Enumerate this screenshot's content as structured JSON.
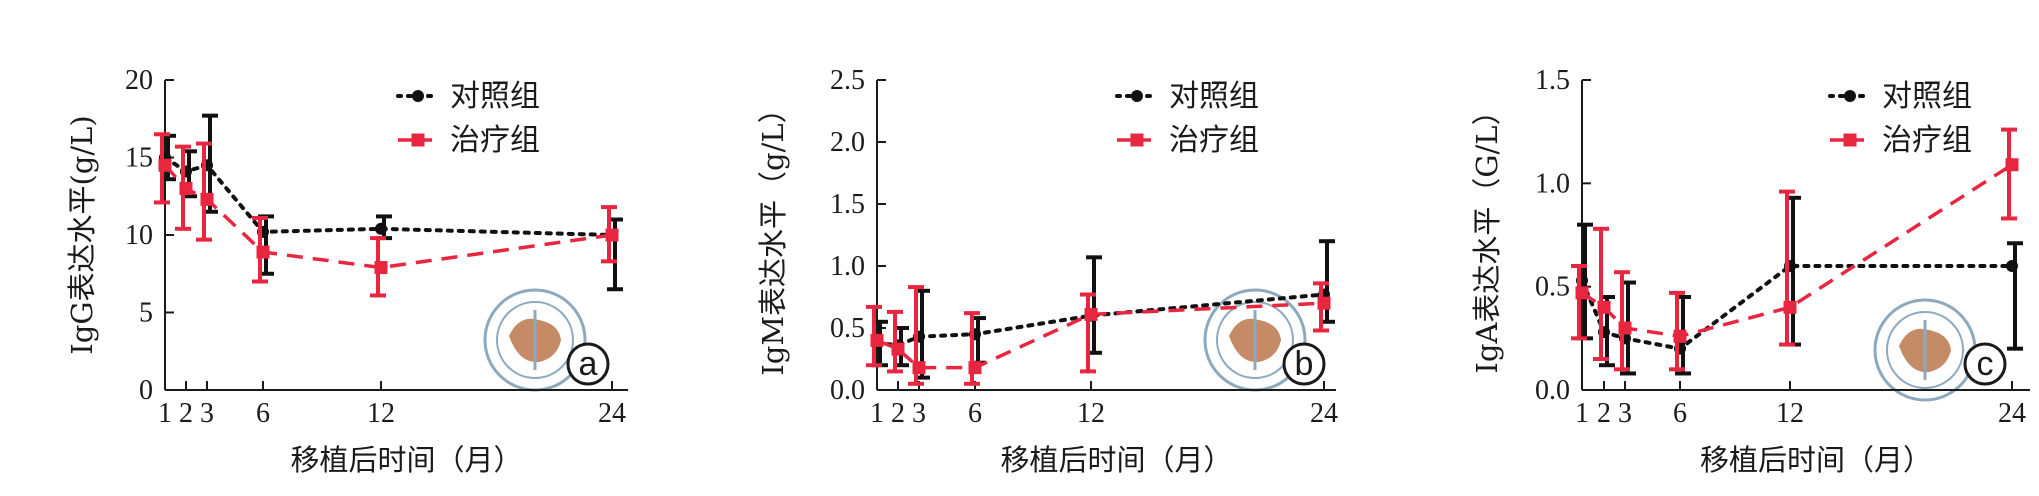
{
  "colors": {
    "control": "#111111",
    "treatment": "#e8263f",
    "axis": "#1a1a1a",
    "seal": "#7a9bb3",
    "seal_map": "#b4683a"
  },
  "chart_data": [
    {
      "type": "line",
      "panel_label": "a",
      "xlabel": "移植后时间（月）",
      "ylabel": "IgG表达水平(g/L)",
      "x_ticks": [
        1,
        2,
        3,
        6,
        12,
        24
      ],
      "y_ticks": [
        "0",
        "5",
        "10",
        "15",
        "20"
      ],
      "ylim": [
        0,
        20
      ],
      "legend_position": "top-right",
      "series": [
        {
          "name": "对照组",
          "style": "dotted",
          "marker": "circle",
          "x": [
            1,
            2,
            3,
            6,
            12,
            24
          ],
          "y": [
            15.0,
            14.1,
            14.5,
            10.2,
            10.4,
            10.0
          ],
          "err_low": [
            13.6,
            12.5,
            11.5,
            7.5,
            9.8,
            6.5
          ],
          "err_high": [
            16.4,
            15.4,
            17.7,
            11.2,
            11.2,
            11.0
          ]
        },
        {
          "name": "治疗组",
          "style": "dashed",
          "marker": "square",
          "x": [
            1,
            2,
            3,
            6,
            12,
            24
          ],
          "y": [
            14.5,
            13.0,
            12.3,
            8.9,
            7.9,
            10.0
          ],
          "err_low": [
            12.1,
            10.4,
            9.7,
            7.0,
            6.1,
            8.3
          ],
          "err_high": [
            16.5,
            15.7,
            15.9,
            11.1,
            9.8,
            11.8
          ]
        }
      ]
    },
    {
      "type": "line",
      "panel_label": "b",
      "xlabel": "移植后时间（月）",
      "ylabel": "IgM表达水平（g/L）",
      "x_ticks": [
        1,
        2,
        3,
        6,
        12,
        24
      ],
      "y_ticks": [
        "0.0",
        "0.5",
        "1.0",
        "1.5",
        "2.0",
        "2.5"
      ],
      "ylim": [
        0,
        2.5
      ],
      "legend_position": "top-right",
      "series": [
        {
          "name": "对照组",
          "style": "dotted",
          "marker": "circle",
          "x": [
            1,
            2,
            3,
            6,
            12,
            24
          ],
          "y": [
            0.38,
            0.36,
            0.43,
            0.45,
            0.6,
            0.77
          ],
          "err_low": [
            0.2,
            0.2,
            0.1,
            0.22,
            0.3,
            0.55
          ],
          "err_high": [
            0.55,
            0.5,
            0.8,
            0.58,
            1.07,
            1.2
          ]
        },
        {
          "name": "治疗组",
          "style": "dashed",
          "marker": "square",
          "x": [
            1,
            2,
            3,
            6,
            12,
            24
          ],
          "y": [
            0.4,
            0.33,
            0.18,
            0.18,
            0.61,
            0.7
          ],
          "err_low": [
            0.2,
            0.15,
            0.05,
            0.05,
            0.15,
            0.48
          ],
          "err_high": [
            0.67,
            0.63,
            0.83,
            0.62,
            0.77,
            0.86
          ]
        }
      ]
    },
    {
      "type": "line",
      "panel_label": "c",
      "xlabel": "移植后时间（月）",
      "ylabel": "IgA表达水平（G/L）",
      "x_ticks": [
        1,
        2,
        3,
        6,
        12,
        24
      ],
      "y_ticks": [
        "0.0",
        "0.5",
        "1.0",
        "1.5"
      ],
      "ylim": [
        0,
        1.5
      ],
      "legend_position": "top-right",
      "series": [
        {
          "name": "对照组",
          "style": "dotted",
          "marker": "circle",
          "x": [
            1,
            2,
            3,
            6,
            12,
            24
          ],
          "y": [
            0.53,
            0.28,
            0.25,
            0.2,
            0.6,
            0.6
          ],
          "err_low": [
            0.25,
            0.12,
            0.08,
            0.08,
            0.22,
            0.2
          ],
          "err_high": [
            0.8,
            0.45,
            0.52,
            0.45,
            0.93,
            0.71
          ]
        },
        {
          "name": "治疗组",
          "style": "dashed",
          "marker": "square",
          "x": [
            1,
            2,
            3,
            6,
            12,
            24
          ],
          "y": [
            0.47,
            0.4,
            0.3,
            0.26,
            0.4,
            1.09
          ],
          "err_low": [
            0.25,
            0.15,
            0.1,
            0.1,
            0.22,
            0.83
          ],
          "err_high": [
            0.6,
            0.78,
            0.57,
            0.47,
            0.96,
            1.26
          ]
        }
      ]
    }
  ]
}
